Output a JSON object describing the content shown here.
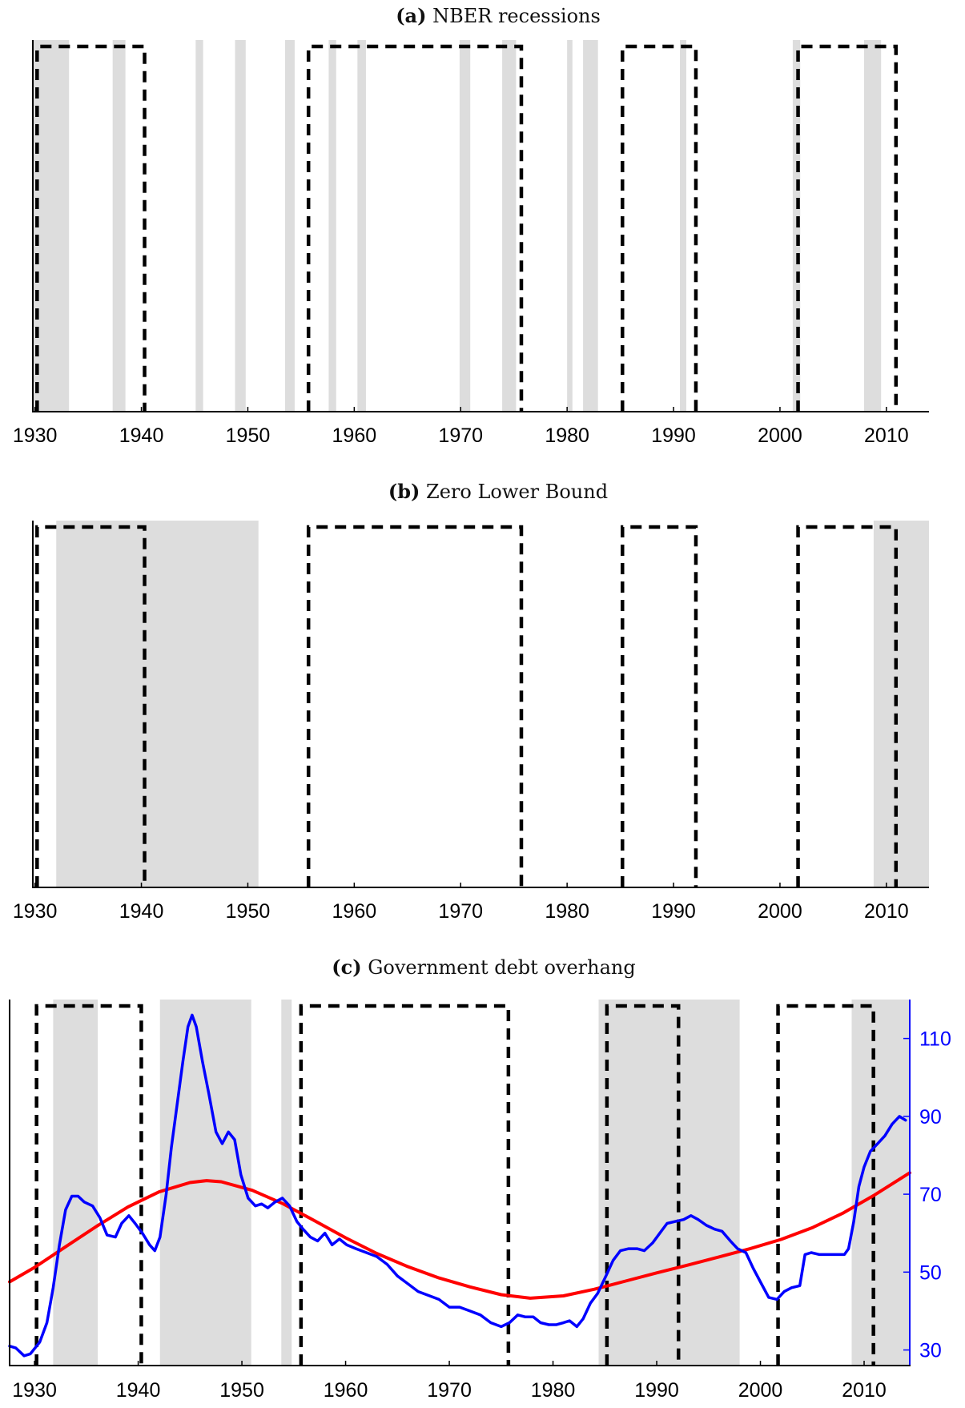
{
  "chart_data": [
    {
      "type": "area",
      "title_label": "(a)",
      "title_text": "NBER recessions",
      "xlim": [
        1929.8,
        2014
      ],
      "xticks": [
        1930,
        1940,
        1950,
        1960,
        1970,
        1980,
        1990,
        2000,
        2010
      ],
      "shaded_periods": [
        [
          1929.6,
          1933.2
        ],
        [
          1937.3,
          1938.5
        ],
        [
          1945.1,
          1945.8
        ],
        [
          1948.8,
          1949.8
        ],
        [
          1953.5,
          1954.4
        ],
        [
          1957.6,
          1958.3
        ],
        [
          1960.3,
          1961.1
        ],
        [
          1969.9,
          1970.9
        ],
        [
          1973.9,
          1975.2
        ],
        [
          1980.0,
          1980.5
        ],
        [
          1981.5,
          1982.9
        ],
        [
          1990.6,
          1991.2
        ],
        [
          2001.2,
          2001.9
        ],
        [
          2007.9,
          2009.5
        ]
      ],
      "dashed_regimes": [
        [
          1930.2,
          1940.3
        ],
        [
          1955.7,
          1975.7
        ],
        [
          1985.2,
          1992.1
        ],
        [
          2001.7,
          2010.9
        ]
      ]
    },
    {
      "type": "area",
      "title_label": "(b)",
      "title_text": "Zero Lower Bound",
      "xlim": [
        1929.8,
        2014
      ],
      "xticks": [
        1930,
        1940,
        1950,
        1960,
        1970,
        1980,
        1990,
        2000,
        2010
      ],
      "shaded_periods": [
        [
          1932.0,
          1951.0
        ],
        [
          2008.8,
          2014
        ]
      ],
      "dashed_regimes": [
        [
          1930.2,
          1940.3
        ],
        [
          1955.7,
          1975.7
        ],
        [
          1985.2,
          1992.1
        ],
        [
          2001.7,
          2010.9
        ]
      ]
    },
    {
      "type": "line",
      "title_label": "(c)",
      "title_text": "Government debt overhang",
      "xlim": [
        1927.6,
        2014.4
      ],
      "ylim": [
        26,
        120
      ],
      "xticks": [
        1930,
        1940,
        1950,
        1960,
        1970,
        1980,
        1990,
        2000,
        2010
      ],
      "yticks": [
        30,
        50,
        70,
        90,
        110
      ],
      "y_axis_side": "right",
      "shaded_periods": [
        [
          1931.8,
          1936.1
        ],
        [
          1942.1,
          1950.9
        ],
        [
          1953.8,
          1954.8
        ],
        [
          1984.4,
          1998.0
        ],
        [
          2008.8,
          2014.4
        ]
      ],
      "dashed_regimes": [
        [
          1930.2,
          1940.3
        ],
        [
          1955.7,
          1975.7
        ],
        [
          1985.2,
          1992.1
        ],
        [
          2001.7,
          2010.9
        ]
      ],
      "colors": {
        "debt": "#0000ff",
        "trend": "#ff0000"
      },
      "series": [
        {
          "role": "debt",
          "x": [
            1927.6,
            1928.2,
            1929.0,
            1929.6,
            1930.5,
            1931.2,
            1931.8,
            1932.4,
            1933.0,
            1933.6,
            1934.2,
            1934.8,
            1935.6,
            1936.3,
            1937.0,
            1937.8,
            1938.4,
            1939.1,
            1939.7,
            1940.4,
            1941.1,
            1941.6,
            1942.1,
            1942.7,
            1943.2,
            1943.8,
            1944.3,
            1944.8,
            1945.2,
            1945.6,
            1946.2,
            1946.8,
            1947.5,
            1948.1,
            1948.7,
            1949.3,
            1949.9,
            1950.6,
            1951.3,
            1951.9,
            1952.5,
            1953.2,
            1953.9,
            1954.6,
            1955.3,
            1955.9,
            1956.6,
            1957.3,
            1958.0,
            1958.7,
            1959.4,
            1960.1,
            1961.0,
            1962.0,
            1963.0,
            1964.0,
            1965.0,
            1966.0,
            1967.0,
            1968.0,
            1969.0,
            1970.0,
            1971.0,
            1972.0,
            1973.0,
            1974.0,
            1975.0,
            1975.8,
            1976.6,
            1977.3,
            1978.1,
            1978.8,
            1979.6,
            1980.3,
            1981.0,
            1981.6,
            1982.3,
            1982.9,
            1983.6,
            1984.3,
            1985.1,
            1985.8,
            1986.5,
            1987.3,
            1988.1,
            1988.8,
            1989.6,
            1990.3,
            1991.0,
            1991.8,
            1992.6,
            1993.3,
            1994.0,
            1994.8,
            1995.6,
            1996.3,
            1997.1,
            1997.8,
            1998.6,
            1999.3,
            2000.0,
            2000.8,
            2001.6,
            2002.3,
            2003.0,
            2003.8,
            2004.3,
            2004.9,
            2005.7,
            2006.5,
            2007.3,
            2008.1,
            2008.5,
            2009.0,
            2009.5,
            2010.0,
            2010.6,
            2011.3,
            2012.0,
            2012.7,
            2013.4,
            2014.0
          ],
          "values": [
            31,
            30.5,
            28.5,
            29,
            32,
            37,
            46,
            57,
            66,
            69.5,
            69.5,
            68,
            67,
            64,
            59.5,
            59,
            62.5,
            64.5,
            62.5,
            60,
            57,
            55.5,
            59,
            70,
            82,
            94,
            104,
            113,
            116,
            113,
            104,
            96,
            86,
            83,
            86,
            84,
            75,
            69,
            67,
            67.5,
            66.5,
            68,
            69,
            67,
            63,
            61,
            59,
            58,
            60,
            57,
            58.5,
            57,
            56,
            55,
            54,
            52,
            49,
            47,
            45,
            44,
            43,
            41,
            41,
            40,
            39,
            37,
            36,
            37,
            39,
            38.5,
            38.5,
            37,
            36.5,
            36.5,
            37,
            37.5,
            36,
            38,
            42,
            44.5,
            49,
            53,
            55.5,
            56,
            56,
            55.5,
            57.5,
            60,
            62.5,
            63,
            63.5,
            64.5,
            63.5,
            62,
            61,
            60.5,
            58,
            56,
            55,
            51,
            47.5,
            43.5,
            43,
            45,
            46,
            46.5,
            54.5,
            55,
            54.5,
            54.5,
            54.5,
            54.5,
            56,
            63,
            72,
            77,
            81,
            83,
            85,
            88,
            90,
            89
          ]
        },
        {
          "role": "trend",
          "x": [
            1927.6,
            1930,
            1933,
            1936,
            1939,
            1942,
            1945,
            1946.6,
            1948,
            1951,
            1954,
            1957,
            1960,
            1963,
            1966,
            1969,
            1972,
            1975,
            1977.8,
            1981,
            1984,
            1987,
            1990,
            1993,
            1996,
            1999,
            2002,
            2005,
            2008,
            2011,
            2014.4
          ],
          "values": [
            47.5,
            51.2,
            56.5,
            61.8,
            66.7,
            70.6,
            73,
            73.5,
            73.2,
            71,
            67.5,
            63.2,
            58.8,
            54.8,
            51.4,
            48.5,
            46.2,
            44.2,
            43.3,
            43.9,
            45.6,
            47.7,
            49.8,
            51.8,
            53.9,
            56.0,
            58.4,
            61.4,
            65.2,
            69.8,
            75.5
          ]
        }
      ]
    }
  ]
}
